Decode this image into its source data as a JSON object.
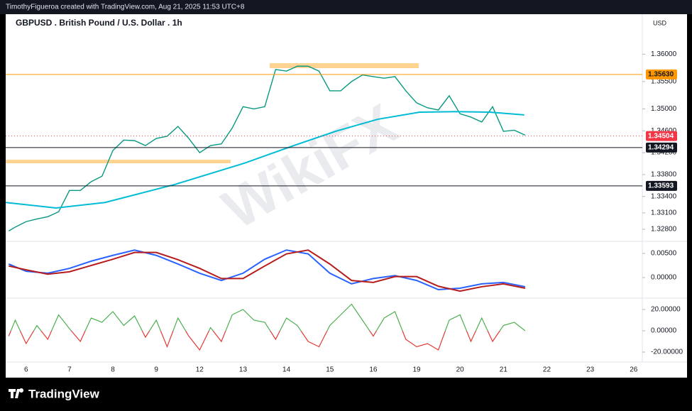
{
  "header": "TimothyFigueroa created with TradingView.com, Aug 21, 2025 11:53 UTC+8",
  "footer": "TradingView",
  "watermark": "WikiFX",
  "chart_data": [
    {
      "type": "line",
      "title": "GBPUSD . British Pound / U.S. Dollar . 1h",
      "currency": "USD",
      "xlim": [
        -0.47,
        14.2
      ],
      "xticks": [
        {
          "value": 0,
          "label": "6"
        },
        {
          "value": 1,
          "label": "7"
        },
        {
          "value": 2,
          "label": "8"
        },
        {
          "value": 3,
          "label": "9"
        },
        {
          "value": 4,
          "label": "12"
        },
        {
          "value": 5,
          "label": "13"
        },
        {
          "value": 6,
          "label": "14"
        },
        {
          "value": 7,
          "label": "15"
        },
        {
          "value": 8,
          "label": "16"
        },
        {
          "value": 9,
          "label": "19"
        },
        {
          "value": 10,
          "label": "20"
        },
        {
          "value": 11,
          "label": "21"
        },
        {
          "value": 12,
          "label": "22"
        },
        {
          "value": 13,
          "label": "23"
        },
        {
          "value": 14,
          "label": "26"
        }
      ],
      "ylim": [
        1.3258,
        1.3673
      ],
      "yticks": [
        {
          "value": 1.36,
          "label": "1.36000"
        },
        {
          "value": 1.355,
          "label": "1.35500"
        },
        {
          "value": 1.35,
          "label": "1.35000"
        },
        {
          "value": 1.346,
          "label": "1.34600"
        },
        {
          "value": 1.342,
          "label": "1.34200"
        },
        {
          "value": 1.338,
          "label": "1.33800"
        },
        {
          "value": 1.334,
          "label": "1.33400"
        },
        {
          "value": 1.331,
          "label": "1.33100"
        },
        {
          "value": 1.328,
          "label": "1.32800"
        }
      ],
      "series": [
        {
          "color": "#089981",
          "x": [
            -0.4,
            -0.25,
            0,
            0.25,
            0.5,
            0.75,
            1,
            1.25,
            1.5,
            1.75,
            2,
            2.25,
            2.5,
            2.75,
            3,
            3.25,
            3.5,
            3.75,
            4,
            4.25,
            4.5,
            4.75,
            5,
            5.25,
            5.5,
            5.75,
            6,
            6.25,
            6.5,
            6.75,
            7,
            7.25,
            7.5,
            7.75,
            8,
            8.25,
            8.5,
            8.75,
            9,
            9.25,
            9.5,
            9.75,
            10,
            10.25,
            10.5,
            10.75,
            11,
            11.25,
            11.5
          ],
          "values": [
            1.3277,
            1.3284,
            1.3294,
            1.3299,
            1.3303,
            1.3312,
            1.3351,
            1.3351,
            1.3367,
            1.3377,
            1.3424,
            1.3443,
            1.3442,
            1.3433,
            1.3446,
            1.345,
            1.3468,
            1.3446,
            1.342,
            1.3433,
            1.3436,
            1.3465,
            1.3504,
            1.35,
            1.3504,
            1.3572,
            1.3569,
            1.3578,
            1.3578,
            1.3569,
            1.3533,
            1.3533,
            1.355,
            1.3562,
            1.3559,
            1.3556,
            1.3559,
            1.3533,
            1.3511,
            1.3502,
            1.3498,
            1.3524,
            1.3491,
            1.3485,
            1.3476,
            1.3504,
            1.3459,
            1.3461,
            1.3452
          ]
        },
        {
          "color": "#00bcd4",
          "x": [
            -0.47,
            0.69,
            1.82,
            3.43,
            5.04,
            6.17,
            7.13,
            8.1,
            9.07,
            9.87,
            10.68,
            11.48
          ],
          "values": [
            1.3329,
            1.3319,
            1.3329,
            1.3362,
            1.3401,
            1.3433,
            1.3459,
            1.3481,
            1.3494,
            1.3495,
            1.3494,
            1.3489
          ]
        }
      ],
      "levels": [
        {
          "value": 1.3563,
          "label": "1.35630",
          "color": "#ff9800"
        },
        {
          "value": 1.34504,
          "color": "#f23645",
          "dashed": true
        },
        {
          "value": 1.34294,
          "color": "#131722"
        },
        {
          "value": 1.33593,
          "color": "#131722"
        }
      ]
    },
    {
      "type": "line",
      "ylim": [
        -0.00426,
        0.0075
      ],
      "yticks": [
        {
          "value": 0.005,
          "label": "0.00500"
        },
        {
          "value": 0,
          "label": "0.00000"
        }
      ],
      "series": [
        {
          "color": "#2962ff",
          "x": [
            -0.4,
            0,
            0.5,
            1,
            1.5,
            2,
            2.5,
            3,
            3.5,
            4,
            4.5,
            5,
            5.5,
            6,
            6.5,
            7,
            7.5,
            8,
            8.5,
            9,
            9.5,
            10,
            10.5,
            11,
            11.5
          ],
          "values": [
            0.0028,
            0.0013,
            0.0009,
            0.0019,
            0.0034,
            0.0046,
            0.0057,
            0.0046,
            0.0028,
            0.0009,
            -0.0006,
            0.0009,
            0.0038,
            0.0057,
            0.0049,
            0.0009,
            -0.0013,
            -0.0002,
            0.0004,
            -0.0006,
            -0.0025,
            -0.0022,
            -0.0013,
            -0.001,
            -0.0019
          ]
        },
        {
          "color": "#b71c1c",
          "x": [
            -0.4,
            0,
            0.5,
            1,
            1.5,
            2,
            2.5,
            3,
            3.5,
            4,
            4.5,
            5,
            5.5,
            6,
            6.5,
            7,
            7.5,
            8,
            8.5,
            9,
            9.5,
            10,
            10.5,
            11,
            11.5
          ],
          "values": [
            0.0024,
            0.0016,
            0.0007,
            0.0012,
            0.0025,
            0.0038,
            0.0052,
            0.0052,
            0.0037,
            0.0019,
            -0.0002,
            -0.0002,
            0.0024,
            0.0049,
            0.0057,
            0.0028,
            -0.0006,
            -0.001,
            0.0002,
            0.0002,
            -0.0018,
            -0.0028,
            -0.0019,
            -0.0013,
            -0.0022
          ]
        }
      ]
    },
    {
      "type": "line",
      "ylim": [
        -29.33,
        30.67
      ],
      "yticks": [
        {
          "value": 20,
          "label": "20.00000"
        },
        {
          "value": 0,
          "label": "0.00000"
        },
        {
          "value": -20,
          "label": "-20.00000"
        }
      ],
      "series": [
        {
          "color": "#4caf50",
          "negative_color": "#e53935",
          "x": [
            -0.4,
            -0.25,
            0,
            0.25,
            0.5,
            0.75,
            1,
            1.25,
            1.5,
            1.75,
            2,
            2.25,
            2.5,
            2.75,
            3,
            3.25,
            3.5,
            3.75,
            4,
            4.25,
            4.5,
            4.75,
            5,
            5.25,
            5.5,
            5.75,
            6,
            6.25,
            6.5,
            6.75,
            7,
            7.25,
            7.5,
            7.75,
            8,
            8.25,
            8.5,
            8.75,
            9,
            9.25,
            9.5,
            9.75,
            10,
            10.25,
            10.5,
            10.75,
            11,
            11.25,
            11.5
          ],
          "values": [
            -5,
            10,
            -12,
            5,
            -8,
            15,
            2,
            -10,
            12,
            8,
            18,
            5,
            14,
            -6,
            10,
            -15,
            12,
            -5,
            -18,
            3,
            -10,
            15,
            20,
            10,
            8,
            -8,
            12,
            5,
            -10,
            -15,
            5,
            15,
            25,
            10,
            -5,
            12,
            18,
            -8,
            -15,
            -12,
            -18,
            10,
            15,
            -10,
            12,
            -10,
            5,
            8,
            0
          ]
        }
      ]
    }
  ]
}
